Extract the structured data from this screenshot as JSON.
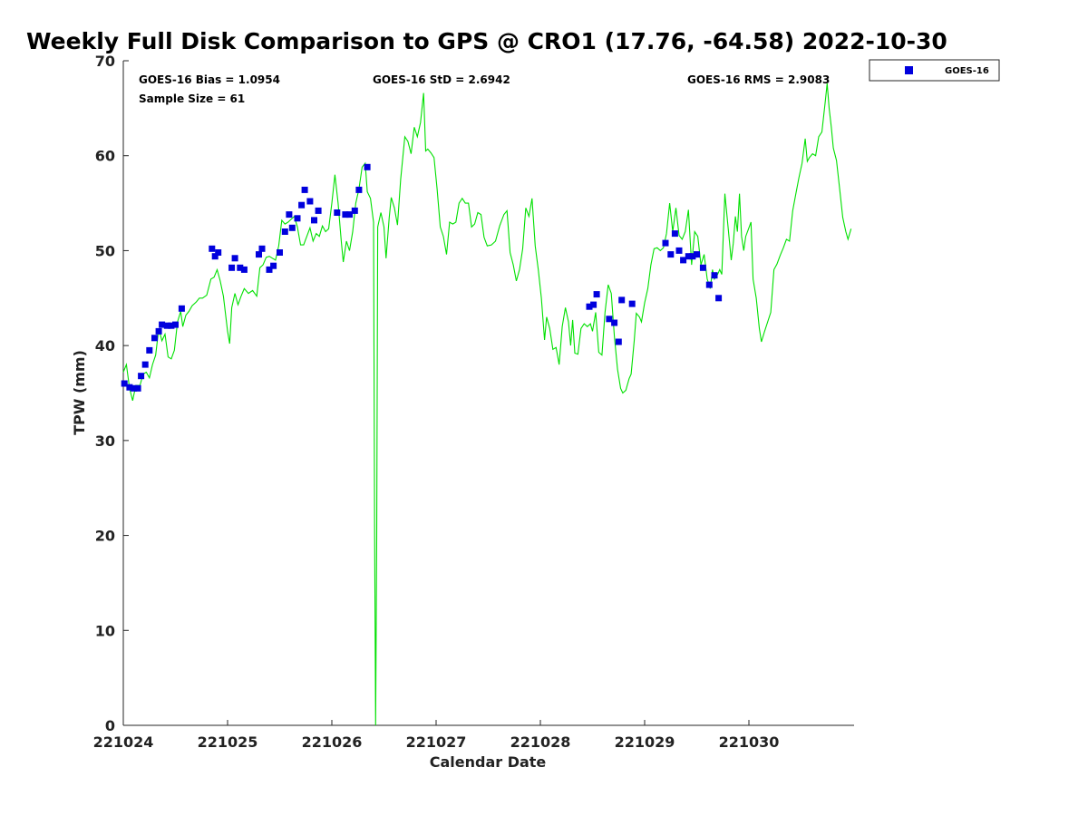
{
  "chart_data": {
    "type": "scatter",
    "title": "Weekly Full Disk Comparison to GPS @ CRO1 (17.76, -64.58) 2022-10-30",
    "xlabel": "Calendar Date",
    "ylabel": "TPW (mm)",
    "xlim": [
      0,
      7.0
    ],
    "ylim": [
      0,
      70
    ],
    "x_ticks": [
      {
        "value": 0,
        "label": "221024"
      },
      {
        "value": 1,
        "label": "221025"
      },
      {
        "value": 2,
        "label": "221026"
      },
      {
        "value": 3,
        "label": "221027"
      },
      {
        "value": 4,
        "label": "221028"
      },
      {
        "value": 5,
        "label": "221029"
      },
      {
        "value": 6,
        "label": "221030"
      }
    ],
    "y_ticks": [
      0,
      10,
      20,
      30,
      40,
      50,
      60,
      70
    ],
    "y_tick_labels": [
      "0",
      "10",
      "20",
      "30",
      "40",
      "50",
      "60",
      "70"
    ],
    "grid": false,
    "legend_position": "outside-top-right",
    "annotations": {
      "bias": "GOES-16 Bias = 1.0954",
      "sample_size": "Sample Size = 61",
      "std": "GOES-16 StD = 2.6942",
      "rms": "GOES-16 RMS = 2.9083"
    },
    "series": [
      {
        "name": "GOES-16",
        "kind": "scatter",
        "color": "#0000dd",
        "points": [
          [
            0.01,
            36.0
          ],
          [
            0.06,
            35.6
          ],
          [
            0.1,
            35.5
          ],
          [
            0.14,
            35.5
          ],
          [
            0.17,
            36.8
          ],
          [
            0.21,
            38.0
          ],
          [
            0.25,
            39.5
          ],
          [
            0.3,
            40.8
          ],
          [
            0.34,
            41.5
          ],
          [
            0.37,
            42.2
          ],
          [
            0.42,
            42.1
          ],
          [
            0.46,
            42.1
          ],
          [
            0.5,
            42.2
          ],
          [
            0.56,
            43.9
          ],
          [
            0.85,
            50.2
          ],
          [
            0.88,
            49.4
          ],
          [
            0.91,
            49.8
          ],
          [
            1.04,
            48.2
          ],
          [
            1.07,
            49.2
          ],
          [
            1.12,
            48.2
          ],
          [
            1.16,
            48.0
          ],
          [
            1.3,
            49.6
          ],
          [
            1.33,
            50.2
          ],
          [
            1.4,
            48.0
          ],
          [
            1.44,
            48.4
          ],
          [
            1.5,
            49.8
          ],
          [
            1.55,
            52.0
          ],
          [
            1.59,
            53.8
          ],
          [
            1.62,
            52.4
          ],
          [
            1.67,
            53.4
          ],
          [
            1.71,
            54.8
          ],
          [
            1.74,
            56.4
          ],
          [
            1.79,
            55.2
          ],
          [
            1.83,
            53.2
          ],
          [
            1.87,
            54.2
          ],
          [
            2.05,
            54.0
          ],
          [
            2.13,
            53.8
          ],
          [
            2.17,
            53.8
          ],
          [
            2.22,
            54.2
          ],
          [
            2.26,
            56.4
          ],
          [
            2.34,
            58.8
          ],
          [
            4.47,
            44.1
          ],
          [
            4.51,
            44.3
          ],
          [
            4.54,
            45.4
          ],
          [
            4.66,
            42.8
          ],
          [
            4.71,
            42.4
          ],
          [
            4.75,
            40.4
          ],
          [
            4.78,
            44.8
          ],
          [
            4.88,
            44.4
          ],
          [
            5.2,
            50.8
          ],
          [
            5.25,
            49.6
          ],
          [
            5.29,
            51.8
          ],
          [
            5.33,
            50.0
          ],
          [
            5.37,
            49.0
          ],
          [
            5.42,
            49.4
          ],
          [
            5.46,
            49.4
          ],
          [
            5.5,
            49.6
          ],
          [
            5.56,
            48.2
          ],
          [
            5.62,
            46.4
          ],
          [
            5.67,
            47.4
          ],
          [
            5.71,
            45.0
          ]
        ]
      },
      {
        "name": "",
        "kind": "line",
        "color": "#00e000",
        "points": [
          [
            0.0,
            37.2
          ],
          [
            0.03,
            38.0
          ],
          [
            0.06,
            35.5
          ],
          [
            0.09,
            34.2
          ],
          [
            0.12,
            35.8
          ],
          [
            0.16,
            35.8
          ],
          [
            0.19,
            37.0
          ],
          [
            0.22,
            37.2
          ],
          [
            0.25,
            36.6
          ],
          [
            0.28,
            38.0
          ],
          [
            0.31,
            39.0
          ],
          [
            0.34,
            41.8
          ],
          [
            0.37,
            40.5
          ],
          [
            0.4,
            41.2
          ],
          [
            0.43,
            38.8
          ],
          [
            0.46,
            38.6
          ],
          [
            0.49,
            39.5
          ],
          [
            0.52,
            42.5
          ],
          [
            0.55,
            43.6
          ],
          [
            0.57,
            42.0
          ],
          [
            0.6,
            43.2
          ],
          [
            0.63,
            43.6
          ],
          [
            0.66,
            44.2
          ],
          [
            0.7,
            44.6
          ],
          [
            0.73,
            45.0
          ],
          [
            0.76,
            45.0
          ],
          [
            0.8,
            45.3
          ],
          [
            0.84,
            47.0
          ],
          [
            0.87,
            47.2
          ],
          [
            0.9,
            48.0
          ],
          [
            0.93,
            46.8
          ],
          [
            0.96,
            45.2
          ],
          [
            1.0,
            41.5
          ],
          [
            1.02,
            40.2
          ],
          [
            1.04,
            44.0
          ],
          [
            1.07,
            45.5
          ],
          [
            1.1,
            44.3
          ],
          [
            1.13,
            45.2
          ],
          [
            1.16,
            46.0
          ],
          [
            1.2,
            45.5
          ],
          [
            1.24,
            45.8
          ],
          [
            1.28,
            45.2
          ],
          [
            1.31,
            48.2
          ],
          [
            1.34,
            48.5
          ],
          [
            1.37,
            49.3
          ],
          [
            1.4,
            49.4
          ],
          [
            1.43,
            49.2
          ],
          [
            1.46,
            49.0
          ],
          [
            1.49,
            50.5
          ],
          [
            1.52,
            53.2
          ],
          [
            1.55,
            52.8
          ],
          [
            1.58,
            53.0
          ],
          [
            1.61,
            53.3
          ],
          [
            1.64,
            53.6
          ],
          [
            1.67,
            52.5
          ],
          [
            1.7,
            50.6
          ],
          [
            1.73,
            50.6
          ],
          [
            1.76,
            51.5
          ],
          [
            1.79,
            52.4
          ],
          [
            1.82,
            51.0
          ],
          [
            1.85,
            51.8
          ],
          [
            1.88,
            51.5
          ],
          [
            1.91,
            52.6
          ],
          [
            1.94,
            52.0
          ],
          [
            1.97,
            52.3
          ],
          [
            2.0,
            55.0
          ],
          [
            2.03,
            58.0
          ],
          [
            2.06,
            55.0
          ],
          [
            2.09,
            51.0
          ],
          [
            2.11,
            48.8
          ],
          [
            2.14,
            51.0
          ],
          [
            2.17,
            50.0
          ],
          [
            2.2,
            52.0
          ],
          [
            2.23,
            55.0
          ],
          [
            2.26,
            56.5
          ],
          [
            2.29,
            58.8
          ],
          [
            2.32,
            59.2
          ],
          [
            2.34,
            56.2
          ],
          [
            2.37,
            55.5
          ],
          [
            2.4,
            53.0
          ],
          [
            2.41,
            20.0
          ],
          [
            2.42,
            0.0
          ],
          [
            2.43,
            20.0
          ],
          [
            2.44,
            52.5
          ],
          [
            2.47,
            54.0
          ],
          [
            2.5,
            52.5
          ],
          [
            2.52,
            49.2
          ],
          [
            2.55,
            53.5
          ],
          [
            2.57,
            55.6
          ],
          [
            2.6,
            54.5
          ],
          [
            2.63,
            52.7
          ],
          [
            2.66,
            57.5
          ],
          [
            2.7,
            62.0
          ],
          [
            2.73,
            61.5
          ],
          [
            2.76,
            60.2
          ],
          [
            2.79,
            63.0
          ],
          [
            2.82,
            62.0
          ],
          [
            2.85,
            63.5
          ],
          [
            2.88,
            66.6
          ],
          [
            2.9,
            60.5
          ],
          [
            2.92,
            60.7
          ],
          [
            2.95,
            60.3
          ],
          [
            2.98,
            59.8
          ],
          [
            3.01,
            56.5
          ],
          [
            3.04,
            52.5
          ],
          [
            3.07,
            51.5
          ],
          [
            3.1,
            49.6
          ],
          [
            3.13,
            53.0
          ],
          [
            3.16,
            52.8
          ],
          [
            3.19,
            53.0
          ],
          [
            3.22,
            55.0
          ],
          [
            3.25,
            55.5
          ],
          [
            3.28,
            55.0
          ],
          [
            3.31,
            55.0
          ],
          [
            3.34,
            52.5
          ],
          [
            3.37,
            52.8
          ],
          [
            3.4,
            54.0
          ],
          [
            3.43,
            53.8
          ],
          [
            3.46,
            51.4
          ],
          [
            3.49,
            50.5
          ],
          [
            3.53,
            50.6
          ],
          [
            3.57,
            51.0
          ],
          [
            3.61,
            52.6
          ],
          [
            3.65,
            53.8
          ],
          [
            3.68,
            54.2
          ],
          [
            3.71,
            49.8
          ],
          [
            3.74,
            48.5
          ],
          [
            3.77,
            46.8
          ],
          [
            3.8,
            48.0
          ],
          [
            3.83,
            50.2
          ],
          [
            3.86,
            54.5
          ],
          [
            3.89,
            53.6
          ],
          [
            3.92,
            55.5
          ],
          [
            3.95,
            50.5
          ],
          [
            3.98,
            48.0
          ],
          [
            4.01,
            45.0
          ],
          [
            4.04,
            40.6
          ],
          [
            4.06,
            43.0
          ],
          [
            4.09,
            41.8
          ],
          [
            4.12,
            39.6
          ],
          [
            4.15,
            39.8
          ],
          [
            4.18,
            38.0
          ],
          [
            4.21,
            42.0
          ],
          [
            4.24,
            44.0
          ],
          [
            4.27,
            42.5
          ],
          [
            4.29,
            40.0
          ],
          [
            4.31,
            42.7
          ],
          [
            4.33,
            39.2
          ],
          [
            4.36,
            39.1
          ],
          [
            4.39,
            41.8
          ],
          [
            4.42,
            42.3
          ],
          [
            4.45,
            42.0
          ],
          [
            4.48,
            42.3
          ],
          [
            4.5,
            41.5
          ],
          [
            4.53,
            43.5
          ],
          [
            4.56,
            39.3
          ],
          [
            4.59,
            39.0
          ],
          [
            4.62,
            43.5
          ],
          [
            4.65,
            46.4
          ],
          [
            4.68,
            45.5
          ],
          [
            4.71,
            41.0
          ],
          [
            4.74,
            37.5
          ],
          [
            4.77,
            35.5
          ],
          [
            4.79,
            35.0
          ],
          [
            4.82,
            35.3
          ],
          [
            4.85,
            36.5
          ],
          [
            4.87,
            37.0
          ],
          [
            4.9,
            40.5
          ],
          [
            4.92,
            43.4
          ],
          [
            4.95,
            43.0
          ],
          [
            4.97,
            42.5
          ],
          [
            5.0,
            44.5
          ],
          [
            5.03,
            46.0
          ],
          [
            5.06,
            48.5
          ],
          [
            5.09,
            50.2
          ],
          [
            5.12,
            50.3
          ],
          [
            5.15,
            50.0
          ],
          [
            5.18,
            50.3
          ],
          [
            5.21,
            51.8
          ],
          [
            5.24,
            55.0
          ],
          [
            5.27,
            52.0
          ],
          [
            5.3,
            54.5
          ],
          [
            5.33,
            51.6
          ],
          [
            5.36,
            51.2
          ],
          [
            5.39,
            52.0
          ],
          [
            5.42,
            54.3
          ],
          [
            5.45,
            48.5
          ],
          [
            5.48,
            52.0
          ],
          [
            5.51,
            51.5
          ],
          [
            5.54,
            48.5
          ],
          [
            5.57,
            49.6
          ],
          [
            5.6,
            47.0
          ],
          [
            5.63,
            46.0
          ],
          [
            5.65,
            48.0
          ],
          [
            5.67,
            47.0
          ],
          [
            5.7,
            47.5
          ],
          [
            5.72,
            48.0
          ],
          [
            5.74,
            47.5
          ],
          [
            5.77,
            56.0
          ],
          [
            5.8,
            52.5
          ],
          [
            5.83,
            49.0
          ],
          [
            5.85,
            50.8
          ],
          [
            5.87,
            53.6
          ],
          [
            5.89,
            52.0
          ],
          [
            5.91,
            56.0
          ],
          [
            5.93,
            51.5
          ],
          [
            5.95,
            50.0
          ],
          [
            5.97,
            51.5
          ],
          [
            6.0,
            52.4
          ],
          [
            6.02,
            53.0
          ],
          [
            6.04,
            47.0
          ],
          [
            6.07,
            45.0
          ],
          [
            6.1,
            41.8
          ],
          [
            6.12,
            40.4
          ],
          [
            6.15,
            41.5
          ],
          [
            6.18,
            42.5
          ],
          [
            6.21,
            43.5
          ],
          [
            6.24,
            48.0
          ],
          [
            6.27,
            48.6
          ],
          [
            6.3,
            49.5
          ],
          [
            6.33,
            50.3
          ],
          [
            6.36,
            51.2
          ],
          [
            6.39,
            51.0
          ],
          [
            6.42,
            54.2
          ],
          [
            6.45,
            56.0
          ],
          [
            6.48,
            57.7
          ],
          [
            6.51,
            59.2
          ],
          [
            6.54,
            61.8
          ],
          [
            6.56,
            59.4
          ],
          [
            6.58,
            59.8
          ],
          [
            6.61,
            60.2
          ],
          [
            6.64,
            60.0
          ],
          [
            6.67,
            62.0
          ],
          [
            6.7,
            62.5
          ],
          [
            6.73,
            65.5
          ],
          [
            6.75,
            67.6
          ],
          [
            6.77,
            65.0
          ],
          [
            6.79,
            63.0
          ],
          [
            6.81,
            60.8
          ],
          [
            6.84,
            59.5
          ],
          [
            6.87,
            56.5
          ],
          [
            6.9,
            53.5
          ],
          [
            6.93,
            52.0
          ],
          [
            6.95,
            51.2
          ],
          [
            6.98,
            52.3
          ]
        ]
      }
    ]
  }
}
